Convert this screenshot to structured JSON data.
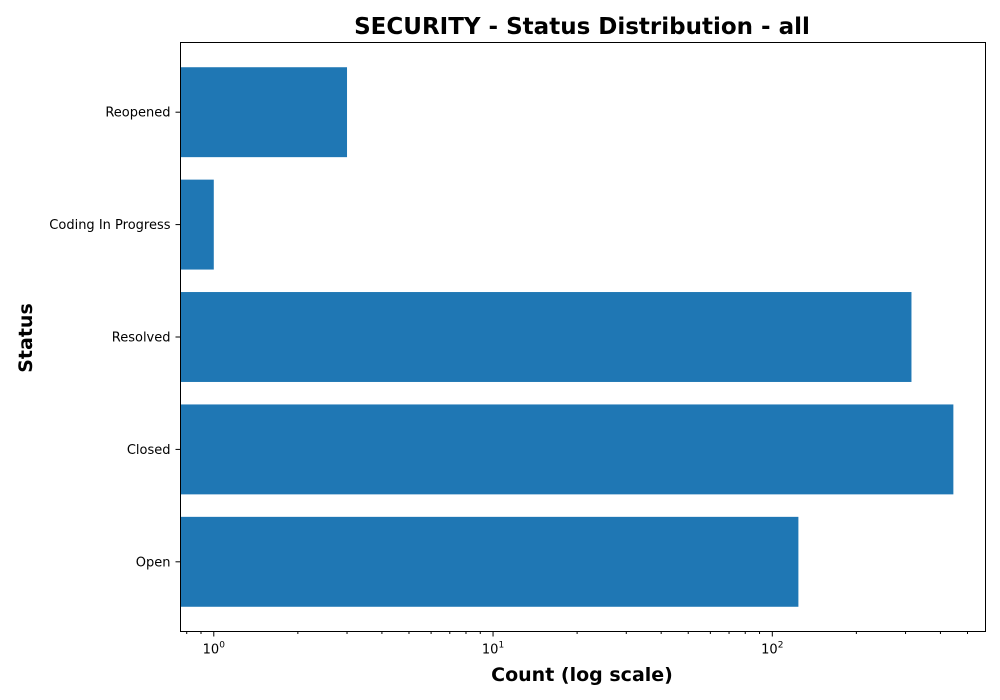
{
  "chart_data": {
    "type": "bar",
    "orientation": "horizontal",
    "title": "SECURITY - Status Distribution - all",
    "xlabel": "Count (log scale)",
    "ylabel": "Status",
    "xscale": "log",
    "xlim": [
      0.76,
      580
    ],
    "categories": [
      "Open",
      "Closed",
      "Resolved",
      "Coding In Progress",
      "Reopened"
    ],
    "values": [
      124,
      445,
      315,
      1,
      3
    ],
    "x_major_ticks": [
      {
        "value": 1,
        "base": "10",
        "exp": "0"
      },
      {
        "value": 10,
        "base": "10",
        "exp": "1"
      },
      {
        "value": 100,
        "base": "10",
        "exp": "2"
      }
    ],
    "bar_color": "#1f77b4",
    "grid": false,
    "legend": "none"
  }
}
